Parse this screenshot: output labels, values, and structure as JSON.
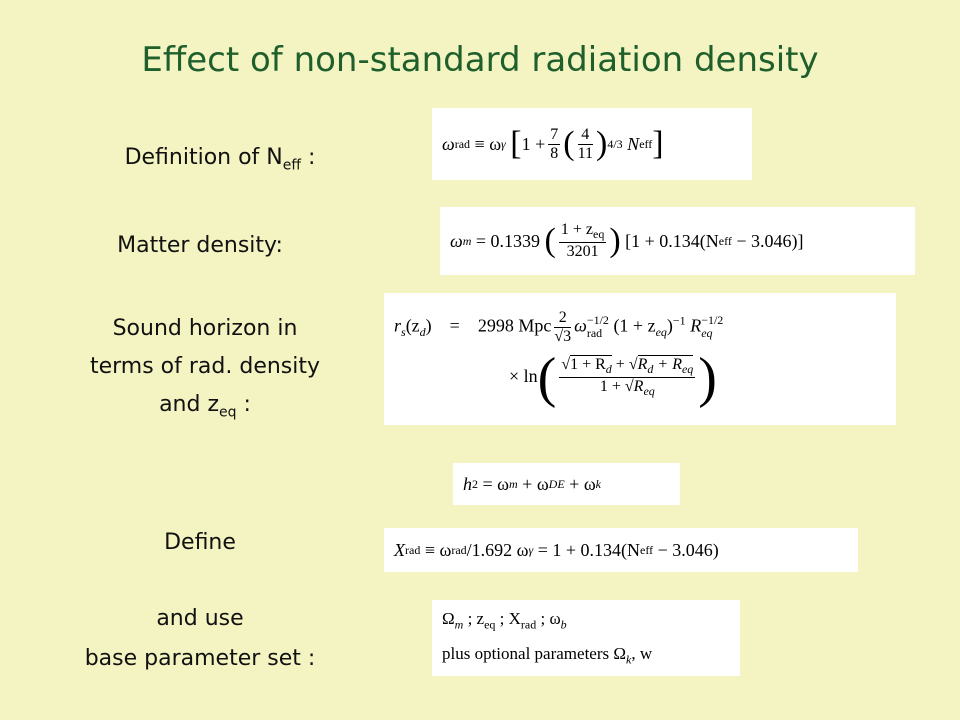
{
  "title": "Effect of non-standard radiation density",
  "labels": {
    "neff": {
      "text": "Definition of N",
      "sub": "eff",
      "tail": " :"
    },
    "matter": "Matter density:",
    "sound": {
      "line1": "Sound horizon in",
      "line2": "terms of rad. density",
      "line3": "and z",
      "sub": "eq",
      "tail": " :"
    },
    "define": "Define",
    "and_use": "and use",
    "base": "base parameter set :"
  },
  "equations": {
    "neff": [
      "ω",
      "rad",
      "≡ ω",
      "γ",
      "[",
      "1 +",
      "7",
      "8",
      "(",
      "4",
      "11",
      ")",
      "4/3",
      "N",
      "eff",
      "]"
    ],
    "matter": [
      "ω",
      "m",
      "= 0.1339",
      "(",
      "1 + z",
      "eq",
      "3201",
      ")",
      "[1 + 0.134(N",
      "eff",
      "− 3.046)]"
    ],
    "sound": [
      "r",
      "s",
      "(z",
      "d",
      ")",
      "=",
      "2998 Mpc",
      "2",
      "√3",
      "ω",
      "−1/2",
      "rad",
      "(1 + z",
      "eq",
      ")",
      "−1",
      "R",
      "−1/2",
      "eq",
      "× ln",
      "(",
      "√",
      "1 + R",
      "d",
      "+",
      "√",
      "R",
      "d",
      " + R",
      "eq",
      "1 +",
      "√",
      "R",
      "eq",
      ")"
    ],
    "hubble": [
      "h",
      "2",
      "= ω",
      "m",
      "+ ω",
      "DE",
      "+ ω",
      "k"
    ],
    "xrad": [
      "X",
      "rad",
      "≡ ω",
      "rad",
      "/1.692 ω",
      "γ",
      "= 1 + 0.134(N",
      "eff",
      "− 3.046)"
    ],
    "params": {
      "line1": [
        "Ω",
        "m",
        " ;  z",
        "eq",
        " ; X",
        "rad",
        " ;  ω",
        "b"
      ],
      "line2": [
        "plus optional parameters Ω",
        "k",
        ", w"
      ]
    }
  }
}
